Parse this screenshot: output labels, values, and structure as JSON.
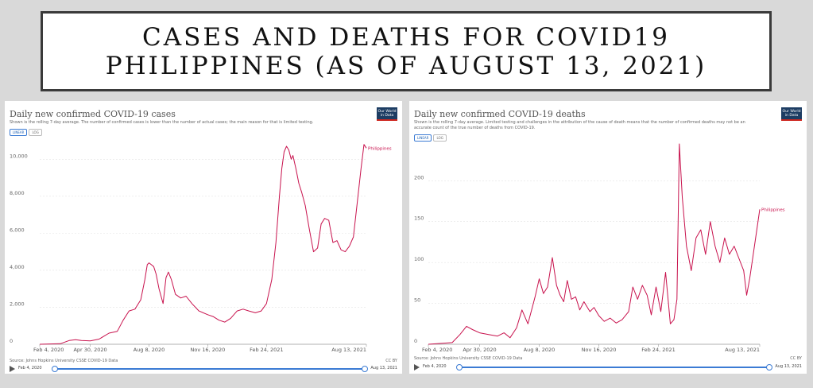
{
  "slide": {
    "title_line1": "CASES AND DEATHS FOR COVID19",
    "title_line2": "PHILIPPINES (AS OF AUGUST 13, 2021)"
  },
  "owid_logo": {
    "line1": "Our World",
    "line2": "in Data"
  },
  "colors": {
    "series": "#c8124d",
    "grid": "#e4e4e4",
    "axis": "#999999",
    "accent": "#3b7bd4"
  },
  "scale_buttons": {
    "linear": "LINEAR",
    "log": "LOG"
  },
  "panels": {
    "cases": {
      "title": "Daily new confirmed COVID-19 cases",
      "subtitle": "Shown is the rolling 7-day average. The number of confirmed cases is lower than the number of actual cases; the main reason for that is limited testing.",
      "source": "Source: Johns Hopkins University CSSE COVID-19 Data",
      "license": "CC BY",
      "timeline_start": "Feb 4, 2020",
      "timeline_end": "Aug 13, 2021"
    },
    "deaths": {
      "title": "Daily new confirmed COVID-19 deaths",
      "subtitle": "Shown is the rolling 7-day average. Limited testing and challenges in the attribution of the cause of death means that the number of confirmed deaths may not be an accurate count of the true number of deaths from COVID-19.",
      "source": "Source: Johns Hopkins University CSSE COVID-19 Data",
      "license": "CC BY",
      "timeline_start": "Feb 4, 2020",
      "timeline_end": "Aug 13, 2021"
    }
  },
  "chart_data": [
    {
      "type": "line",
      "title": "Daily new confirmed COVID-19 cases",
      "x_ticks": [
        "Feb 4, 2020",
        "Apr 30, 2020",
        "Aug 8, 2020",
        "Nov 16, 2020",
        "Feb 24, 2021",
        "Aug 13, 2021"
      ],
      "y_ticks": [
        "0",
        "2,000",
        "4,000",
        "6,000",
        "8,000",
        "10,000"
      ],
      "ylim": [
        0,
        11000
      ],
      "grid": true,
      "legend": "right end label",
      "series": [
        {
          "name": "Philippines",
          "x": [
            "2020-02-04",
            "2020-03-10",
            "2020-03-25",
            "2020-04-05",
            "2020-04-15",
            "2020-04-30",
            "2020-05-15",
            "2020-06-01",
            "2020-06-15",
            "2020-06-25",
            "2020-07-05",
            "2020-07-15",
            "2020-07-25",
            "2020-08-01",
            "2020-08-05",
            "2020-08-08",
            "2020-08-12",
            "2020-08-16",
            "2020-08-20",
            "2020-08-25",
            "2020-09-01",
            "2020-09-06",
            "2020-09-10",
            "2020-09-15",
            "2020-09-22",
            "2020-10-01",
            "2020-10-10",
            "2020-10-20",
            "2020-11-01",
            "2020-11-16",
            "2020-11-25",
            "2020-12-05",
            "2020-12-15",
            "2020-12-25",
            "2021-01-05",
            "2021-01-15",
            "2021-01-25",
            "2021-02-05",
            "2021-02-15",
            "2021-02-24",
            "2021-03-05",
            "2021-03-12",
            "2021-03-18",
            "2021-03-22",
            "2021-03-26",
            "2021-03-30",
            "2021-04-03",
            "2021-04-07",
            "2021-04-10",
            "2021-04-15",
            "2021-04-20",
            "2021-04-25",
            "2021-05-01",
            "2021-05-08",
            "2021-05-15",
            "2021-05-22",
            "2021-05-28",
            "2021-06-03",
            "2021-06-10",
            "2021-06-17",
            "2021-06-24",
            "2021-07-01",
            "2021-07-08",
            "2021-07-15",
            "2021-07-22",
            "2021-07-29",
            "2021-08-04",
            "2021-08-09",
            "2021-08-13"
          ],
          "y": [
            0,
            30,
            200,
            250,
            200,
            180,
            280,
            600,
            700,
            1300,
            1800,
            1900,
            2400,
            3500,
            4300,
            4400,
            4300,
            4200,
            3800,
            3000,
            2200,
            3600,
            3900,
            3500,
            2700,
            2500,
            2600,
            2200,
            1800,
            1600,
            1500,
            1300,
            1200,
            1400,
            1800,
            1900,
            1800,
            1700,
            1800,
            2200,
            3500,
            5500,
            8000,
            9500,
            10400,
            10700,
            10500,
            10000,
            10200,
            9500,
            8700,
            8200,
            7500,
            6200,
            5000,
            5200,
            6500,
            6800,
            6700,
            5500,
            5600,
            5100,
            5000,
            5300,
            5800,
            7800,
            9500,
            10800,
            10600
          ]
        }
      ]
    },
    {
      "type": "line",
      "title": "Daily new confirmed COVID-19 deaths",
      "x_ticks": [
        "Feb 4, 2020",
        "Apr 30, 2020",
        "Aug 8, 2020",
        "Nov 16, 2020",
        "Feb 24, 2021",
        "Aug 13, 2021"
      ],
      "y_ticks": [
        "0",
        "50",
        "100",
        "150",
        "200"
      ],
      "ylim": [
        0,
        245
      ],
      "grid": true,
      "legend": "right end label",
      "series": [
        {
          "name": "Philippines",
          "x": [
            "2020-02-04",
            "2020-03-15",
            "2020-03-28",
            "2020-04-08",
            "2020-04-18",
            "2020-04-30",
            "2020-05-15",
            "2020-05-30",
            "2020-06-10",
            "2020-06-20",
            "2020-07-01",
            "2020-07-10",
            "2020-07-20",
            "2020-08-01",
            "2020-08-08",
            "2020-08-15",
            "2020-08-22",
            "2020-08-30",
            "2020-09-06",
            "2020-09-12",
            "2020-09-18",
            "2020-09-24",
            "2020-10-01",
            "2020-10-08",
            "2020-10-15",
            "2020-10-22",
            "2020-11-01",
            "2020-11-08",
            "2020-11-16",
            "2020-11-25",
            "2020-12-05",
            "2020-12-15",
            "2020-12-25",
            "2021-01-05",
            "2021-01-12",
            "2021-01-20",
            "2021-01-28",
            "2021-02-05",
            "2021-02-12",
            "2021-02-20",
            "2021-02-28",
            "2021-03-08",
            "2021-03-16",
            "2021-03-22",
            "2021-03-27",
            "2021-03-31",
            "2021-04-05",
            "2021-04-12",
            "2021-04-20",
            "2021-04-28",
            "2021-05-06",
            "2021-05-14",
            "2021-05-22",
            "2021-05-30",
            "2021-06-07",
            "2021-06-15",
            "2021-06-23",
            "2021-07-01",
            "2021-07-09",
            "2021-07-17",
            "2021-07-22",
            "2021-07-27",
            "2021-08-02",
            "2021-08-08",
            "2021-08-13"
          ],
          "y": [
            0,
            2,
            12,
            22,
            18,
            14,
            12,
            10,
            14,
            8,
            20,
            42,
            25,
            58,
            80,
            62,
            70,
            106,
            72,
            60,
            52,
            78,
            55,
            58,
            42,
            52,
            40,
            45,
            35,
            28,
            32,
            26,
            30,
            40,
            70,
            55,
            72,
            60,
            36,
            70,
            40,
            88,
            25,
            30,
            55,
            245,
            180,
            120,
            90,
            130,
            140,
            110,
            150,
            120,
            100,
            130,
            110,
            120,
            105,
            90,
            60,
            80,
            110,
            140,
            165
          ]
        }
      ]
    }
  ]
}
